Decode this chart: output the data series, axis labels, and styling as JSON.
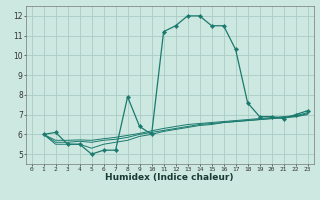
{
  "xlabel": "Humidex (Indice chaleur)",
  "xlim": [
    -0.5,
    23.5
  ],
  "ylim": [
    4.5,
    12.5
  ],
  "xticks": [
    0,
    1,
    2,
    3,
    4,
    5,
    6,
    7,
    8,
    9,
    10,
    11,
    12,
    13,
    14,
    15,
    16,
    17,
    18,
    19,
    20,
    21,
    22,
    23
  ],
  "yticks": [
    5,
    6,
    7,
    8,
    9,
    10,
    11,
    12
  ],
  "bg_color": "#cce8e0",
  "grid_color": "#aaccC4",
  "line_color": "#1a7a6e",
  "series1_x": [
    1,
    2,
    3,
    4,
    5,
    6,
    7,
    8,
    9,
    10,
    11,
    12,
    13,
    14,
    15,
    16,
    17,
    18,
    19,
    20,
    21,
    22,
    23
  ],
  "series1_y": [
    6.0,
    6.1,
    5.5,
    5.5,
    5.0,
    5.2,
    5.2,
    7.9,
    6.4,
    6.0,
    11.2,
    11.5,
    12.0,
    12.0,
    11.5,
    11.5,
    10.3,
    7.6,
    6.9,
    6.9,
    6.8,
    7.0,
    7.2
  ],
  "series2_x": [
    1,
    2,
    3,
    4,
    5,
    6,
    7,
    8,
    9,
    10,
    11,
    12,
    13,
    14,
    15,
    16,
    17,
    18,
    19,
    20,
    21,
    22,
    23
  ],
  "series2_y": [
    6.0,
    5.5,
    5.5,
    5.5,
    5.3,
    5.5,
    5.6,
    5.7,
    5.9,
    6.0,
    6.15,
    6.25,
    6.35,
    6.45,
    6.5,
    6.6,
    6.65,
    6.7,
    6.75,
    6.8,
    6.85,
    6.9,
    7.0
  ],
  "series3_x": [
    1,
    2,
    3,
    4,
    5,
    6,
    7,
    8,
    9,
    10,
    11,
    12,
    13,
    14,
    15,
    16,
    17,
    18,
    19,
    20,
    21,
    22,
    23
  ],
  "series3_y": [
    6.0,
    5.6,
    5.6,
    5.65,
    5.6,
    5.7,
    5.75,
    5.85,
    6.0,
    6.1,
    6.2,
    6.3,
    6.4,
    6.5,
    6.55,
    6.6,
    6.65,
    6.7,
    6.75,
    6.8,
    6.85,
    6.9,
    7.05
  ],
  "series4_x": [
    1,
    2,
    3,
    4,
    5,
    6,
    7,
    8,
    9,
    10,
    11,
    12,
    13,
    14,
    15,
    16,
    17,
    18,
    19,
    20,
    21,
    22,
    23
  ],
  "series4_y": [
    6.0,
    5.7,
    5.7,
    5.72,
    5.7,
    5.78,
    5.85,
    5.95,
    6.05,
    6.18,
    6.3,
    6.4,
    6.5,
    6.55,
    6.6,
    6.65,
    6.7,
    6.75,
    6.8,
    6.85,
    6.9,
    6.95,
    7.1
  ]
}
